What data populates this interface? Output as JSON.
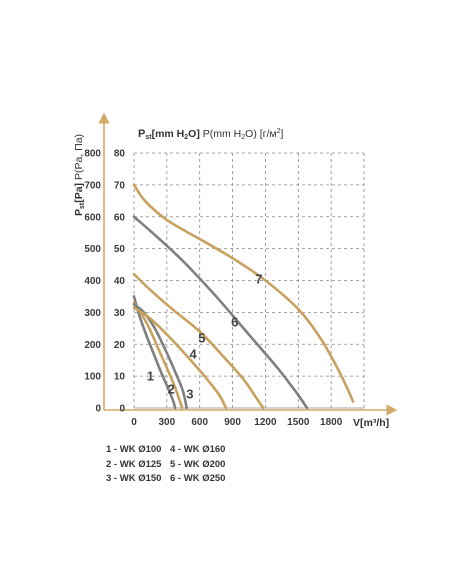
{
  "colors": {
    "grey": "#7f7f7f",
    "gold": "#c9a15e",
    "axis": "#d2aa69",
    "grid": "#8a8a8a"
  },
  "chart_data": {
    "type": "line",
    "y_title_bold": "P",
    "y_title_sub": "st",
    "y_title_bold2": "[Pa]",
    "y_title_rest": " P(Pa, Па)",
    "top_title_bold": "P",
    "top_title_sub": "st",
    "top_title_bold2": "[mm H",
    "top_title_sub2": "2",
    "top_title_bold3": "O]",
    "top_title_rest": " P(mm H",
    "top_title_sub3": "2",
    "top_title_rest2": "O) [г/м",
    "top_title_sup": "2",
    "top_title_rest3": "]",
    "xlabel": "V[m³/h]",
    "xlim": [
      0,
      2100
    ],
    "ylim": [
      0,
      800
    ],
    "grid": true,
    "x_ticks": [
      0,
      300,
      600,
      900,
      1200,
      1500,
      1800
    ],
    "pa_ticks": [
      0,
      100,
      200,
      300,
      400,
      500,
      600,
      700,
      800
    ],
    "mm_ticks": [
      0,
      10,
      20,
      30,
      40,
      50,
      60,
      70,
      80
    ],
    "series": [
      {
        "name": "1",
        "color": "grey",
        "points": [
          [
            0,
            350
          ],
          [
            40,
            300
          ],
          [
            100,
            240
          ],
          [
            180,
            170
          ],
          [
            250,
            110
          ],
          [
            320,
            55
          ],
          [
            360,
            20
          ],
          [
            375,
            0
          ]
        ]
      },
      {
        "name": "2",
        "color": "gold",
        "points": [
          [
            0,
            330
          ],
          [
            60,
            300
          ],
          [
            140,
            250
          ],
          [
            230,
            180
          ],
          [
            320,
            110
          ],
          [
            380,
            60
          ],
          [
            420,
            20
          ],
          [
            440,
            0
          ]
        ]
      },
      {
        "name": "3",
        "color": "grey",
        "points": [
          [
            0,
            325
          ],
          [
            90,
            300
          ],
          [
            190,
            250
          ],
          [
            290,
            180
          ],
          [
            380,
            110
          ],
          [
            440,
            60
          ],
          [
            470,
            20
          ],
          [
            480,
            0
          ]
        ]
      },
      {
        "name": "4",
        "color": "gold",
        "points": [
          [
            0,
            315
          ],
          [
            150,
            280
          ],
          [
            330,
            220
          ],
          [
            530,
            145
          ],
          [
            680,
            85
          ],
          [
            780,
            40
          ],
          [
            840,
            0
          ]
        ]
      },
      {
        "name": "5",
        "color": "gold",
        "points": [
          [
            0,
            420
          ],
          [
            150,
            370
          ],
          [
            350,
            310
          ],
          [
            600,
            240
          ],
          [
            820,
            160
          ],
          [
            1000,
            90
          ],
          [
            1120,
            30
          ],
          [
            1180,
            0
          ]
        ]
      },
      {
        "name": "6",
        "color": "grey",
        "points": [
          [
            0,
            600
          ],
          [
            200,
            540
          ],
          [
            450,
            460
          ],
          [
            750,
            350
          ],
          [
            1050,
            230
          ],
          [
            1300,
            130
          ],
          [
            1480,
            50
          ],
          [
            1580,
            0
          ]
        ]
      },
      {
        "name": "7",
        "color": "gold",
        "points": [
          [
            0,
            700
          ],
          [
            100,
            650
          ],
          [
            300,
            590
          ],
          [
            600,
            530
          ],
          [
            900,
            470
          ],
          [
            1200,
            400
          ],
          [
            1500,
            310
          ],
          [
            1700,
            220
          ],
          [
            1850,
            130
          ],
          [
            1950,
            60
          ],
          [
            2000,
            20
          ]
        ]
      }
    ],
    "series_labels": [
      {
        "name": "1",
        "x": 150,
        "y": 87
      },
      {
        "name": "2",
        "x": 340,
        "y": 45
      },
      {
        "name": "3",
        "x": 510,
        "y": 30
      },
      {
        "name": "4",
        "x": 540,
        "y": 155
      },
      {
        "name": "5",
        "x": 620,
        "y": 205
      },
      {
        "name": "6",
        "x": 920,
        "y": 255
      },
      {
        "name": "7",
        "x": 1140,
        "y": 390
      }
    ],
    "legend": [
      [
        "1 - WK Ø100",
        "2 - WK Ø125",
        "3 - WK Ø150"
      ],
      [
        "4 - WK Ø160",
        "5 - WK Ø200",
        "6 - WK Ø250"
      ]
    ]
  }
}
